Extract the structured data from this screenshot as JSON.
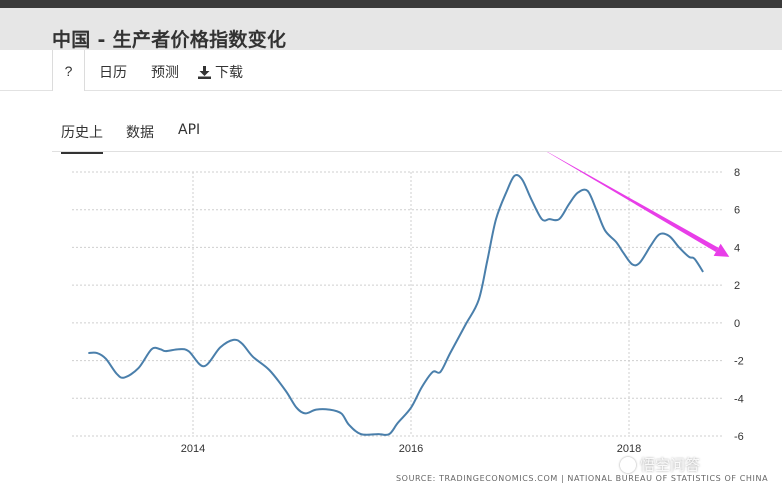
{
  "header": {
    "title": "中国 - 生产者价格指数变化"
  },
  "toolbar": {
    "help": "?",
    "calendar": "日历",
    "forecast": "预测",
    "download": "下载"
  },
  "tabs": [
    {
      "label": "历史上",
      "active": true
    },
    {
      "label": "数据",
      "active": false
    },
    {
      "label": "API",
      "active": false
    }
  ],
  "chart_data": {
    "type": "line",
    "title": "",
    "xlabel": "",
    "ylabel": "",
    "ylim": [
      -6,
      8
    ],
    "xlim": [
      2013.0,
      2018.6
    ],
    "y_ticks": [
      8,
      6,
      4,
      2,
      0,
      -2,
      -4,
      -6
    ],
    "x_ticks": [
      2014,
      2016,
      2018
    ],
    "x_tick_labels": [
      "2014",
      "2016",
      "2018"
    ],
    "grid": true,
    "line_color": "#4a7fab",
    "series": [
      {
        "values": [
          [
            2013.04,
            -1.6
          ],
          [
            2013.12,
            -1.6
          ],
          [
            2013.2,
            -1.9
          ],
          [
            2013.3,
            -2.7
          ],
          [
            2013.37,
            -2.9
          ],
          [
            2013.5,
            -2.4
          ],
          [
            2013.62,
            -1.4
          ],
          [
            2013.7,
            -1.4
          ],
          [
            2013.75,
            -1.5
          ],
          [
            2013.87,
            -1.4
          ],
          [
            2013.96,
            -1.5
          ],
          [
            2014.1,
            -2.3
          ],
          [
            2014.25,
            -1.3
          ],
          [
            2014.37,
            -0.9
          ],
          [
            2014.45,
            -1.1
          ],
          [
            2014.55,
            -1.8
          ],
          [
            2014.7,
            -2.5
          ],
          [
            2014.85,
            -3.6
          ],
          [
            2014.95,
            -4.5
          ],
          [
            2015.03,
            -4.8
          ],
          [
            2015.13,
            -4.6
          ],
          [
            2015.25,
            -4.6
          ],
          [
            2015.36,
            -4.8
          ],
          [
            2015.43,
            -5.4
          ],
          [
            2015.54,
            -5.9
          ],
          [
            2015.7,
            -5.9
          ],
          [
            2015.8,
            -5.9
          ],
          [
            2015.88,
            -5.3
          ],
          [
            2016.0,
            -4.5
          ],
          [
            2016.1,
            -3.4
          ],
          [
            2016.2,
            -2.6
          ],
          [
            2016.27,
            -2.6
          ],
          [
            2016.36,
            -1.6
          ],
          [
            2016.5,
            -0.1
          ],
          [
            2016.62,
            1.2
          ],
          [
            2016.7,
            3.3
          ],
          [
            2016.78,
            5.5
          ],
          [
            2016.88,
            7.0
          ],
          [
            2016.95,
            7.8
          ],
          [
            2017.02,
            7.6
          ],
          [
            2017.1,
            6.6
          ],
          [
            2017.2,
            5.5
          ],
          [
            2017.27,
            5.5
          ],
          [
            2017.36,
            5.5
          ],
          [
            2017.45,
            6.3
          ],
          [
            2017.53,
            6.9
          ],
          [
            2017.62,
            7.0
          ],
          [
            2017.7,
            6.0
          ],
          [
            2017.78,
            4.9
          ],
          [
            2017.88,
            4.3
          ],
          [
            2017.95,
            3.7
          ],
          [
            2018.03,
            3.1
          ],
          [
            2018.1,
            3.2
          ],
          [
            2018.2,
            4.1
          ],
          [
            2018.28,
            4.7
          ],
          [
            2018.37,
            4.6
          ],
          [
            2018.46,
            4.0
          ],
          [
            2018.55,
            3.5
          ],
          [
            2018.6,
            3.4
          ],
          [
            2018.68,
            2.7
          ]
        ]
      }
    ],
    "annotations": [
      {
        "type": "arrow",
        "color": "#e83ee8",
        "from": [
          2017.15,
          9.4
        ],
        "to": [
          2018.92,
          3.5
        ]
      }
    ],
    "source": "SOURCE: TRADINGECONOMICS.COM | NATIONAL BUREAU OF STATISTICS OF CHINA"
  },
  "watermark": {
    "text": "悟空问答"
  }
}
